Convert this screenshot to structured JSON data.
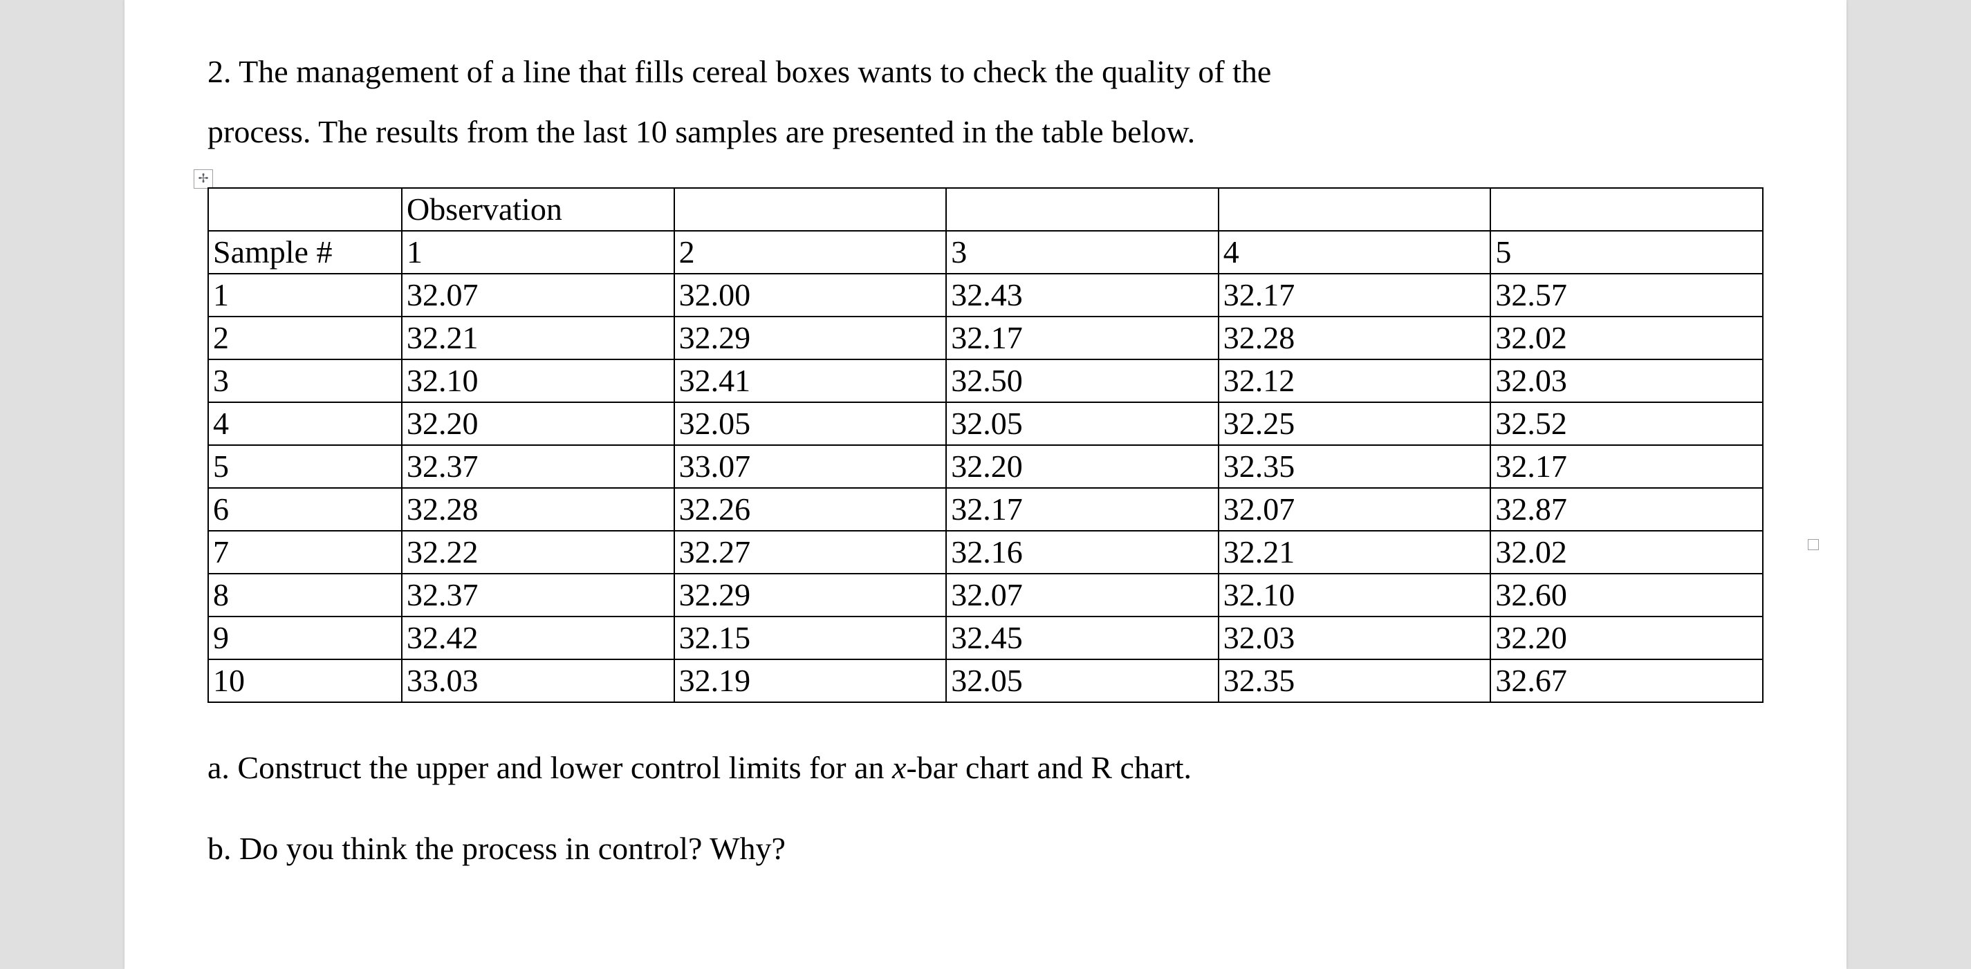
{
  "question_number": "2.",
  "intro_line1": "2. The management of a line that fills cereal boxes wants to check the quality of the",
  "intro_line2": "process. The results from the last 10 samples are presented in the table below.",
  "table_handle_glyph": "✢",
  "table": {
    "header_top_left_blank": "",
    "observation_label": "Observation",
    "sample_header": "Sample #",
    "observation_numbers": [
      "1",
      "2",
      "3",
      "4",
      "5"
    ],
    "rows": [
      {
        "sample": "1",
        "obs": [
          "32.07",
          "32.00",
          "32.43",
          "32.17",
          "32.57"
        ]
      },
      {
        "sample": "2",
        "obs": [
          "32.21",
          "32.29",
          "32.17",
          "32.28",
          "32.02"
        ]
      },
      {
        "sample": "3",
        "obs": [
          "32.10",
          "32.41",
          "32.50",
          "32.12",
          "32.03"
        ]
      },
      {
        "sample": "4",
        "obs": [
          "32.20",
          "32.05",
          "32.05",
          "32.25",
          "32.52"
        ]
      },
      {
        "sample": "5",
        "obs": [
          "32.37",
          "33.07",
          "32.20",
          "32.35",
          "32.17"
        ]
      },
      {
        "sample": "6",
        "obs": [
          "32.28",
          "32.26",
          "32.17",
          "32.07",
          "32.87"
        ]
      },
      {
        "sample": "7",
        "obs": [
          "32.22",
          "32.27",
          "32.16",
          "32.21",
          "32.02"
        ]
      },
      {
        "sample": "8",
        "obs": [
          "32.37",
          "32.29",
          "32.07",
          "32.10",
          "32.60"
        ]
      },
      {
        "sample": "9",
        "obs": [
          "32.42",
          "32.15",
          "32.45",
          "32.03",
          "32.20"
        ]
      },
      {
        "sample": "10",
        "obs": [
          "33.03",
          "32.19",
          "32.05",
          "32.35",
          "32.67"
        ]
      }
    ]
  },
  "sub_a_prefix": "a. Construct the upper and lower control limits for an ",
  "sub_a_var": "x",
  "sub_a_suffix": "-bar chart and R chart.",
  "sub_b": "b. Do you think the process in control? Why?"
}
